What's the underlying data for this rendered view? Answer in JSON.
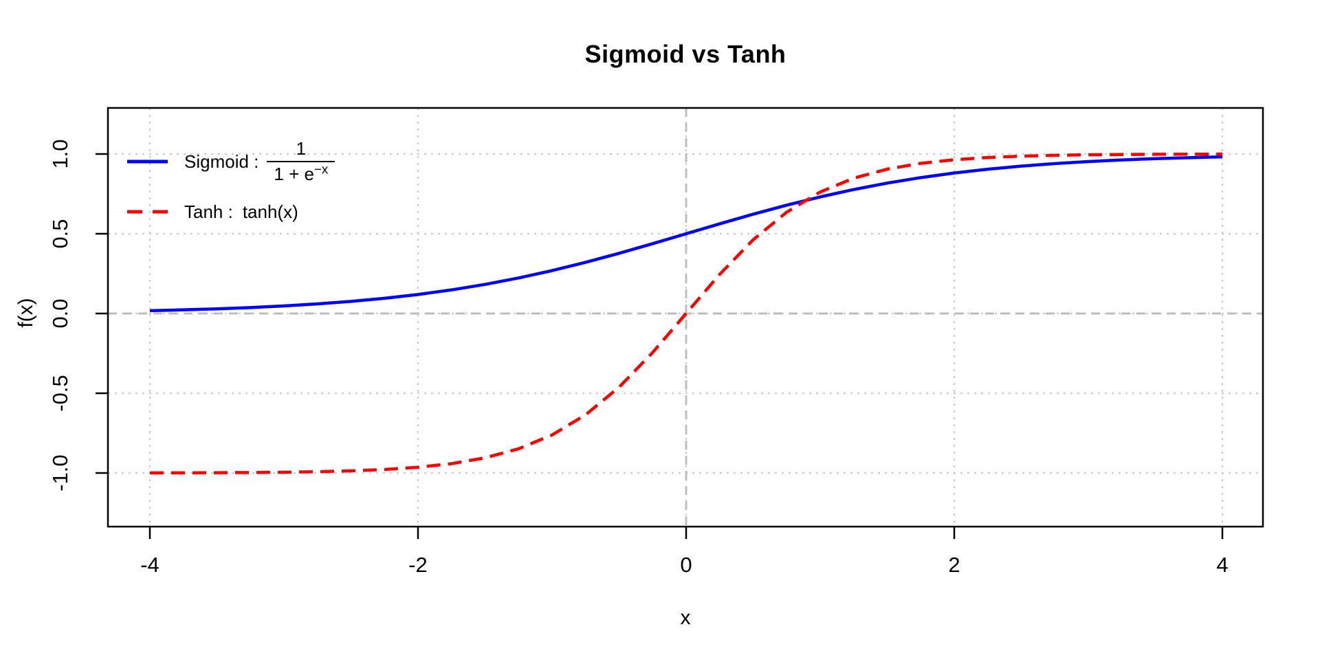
{
  "title": "Sigmoid vs Tanh",
  "axes": {
    "x_label": "x",
    "y_label": "f(x)",
    "x_tick_labels": [
      "-4",
      "-2",
      "0",
      "2",
      "4"
    ],
    "y_tick_labels": [
      "-1.0",
      "-0.5",
      "0.0",
      "0.5",
      "1.0"
    ]
  },
  "legend": {
    "sigmoid_label": "Sigmoid :",
    "sigmoid_frac_numerator": "1",
    "sigmoid_frac_denominator_base": "1 + e",
    "sigmoid_frac_denominator_exp": "−x",
    "tanh_label": "Tanh :",
    "tanh_formula": "tanh(x)"
  },
  "colors": {
    "sigmoid": "#0000FF",
    "tanh": "#FF0000",
    "grid_dotted": "#CDCDCD",
    "reference_dashed": "#BEBEBE",
    "axis": "#000000",
    "text": "#000000",
    "background": "#FFFFFF"
  },
  "chart_data": {
    "type": "line",
    "title": "Sigmoid vs Tanh",
    "xlabel": "x",
    "ylabel": "f(x)",
    "xlim": [
      -4.3,
      4.3
    ],
    "ylim": [
      -1.35,
      1.3
    ],
    "x_tick_values": [
      -4,
      -2,
      0,
      2,
      4
    ],
    "y_tick_values": [
      -1.0,
      -0.5,
      0.0,
      0.5,
      1.0
    ],
    "grid": "dotted gridlines at all ticks; dashed gray reference lines at x=0 and y=0",
    "legend_position": "top-left",
    "x": [
      -4,
      -3.75,
      -3.5,
      -3.25,
      -3,
      -2.75,
      -2.5,
      -2.25,
      -2,
      -1.75,
      -1.5,
      -1.25,
      -1,
      -0.75,
      -0.5,
      -0.25,
      0,
      0.25,
      0.5,
      0.75,
      1,
      1.25,
      1.5,
      1.75,
      2,
      2.25,
      2.5,
      2.75,
      3,
      3.25,
      3.5,
      3.75,
      4
    ],
    "series": [
      {
        "name": "Sigmoid : 1/(1+e^(-x))",
        "color": "#0000FF",
        "style": "solid",
        "values": [
          0.018,
          0.023,
          0.0293,
          0.0374,
          0.0474,
          0.0601,
          0.0759,
          0.0953,
          0.1192,
          0.148,
          0.1824,
          0.2227,
          0.2689,
          0.3208,
          0.3775,
          0.4378,
          0.5,
          0.5622,
          0.6225,
          0.6792,
          0.7311,
          0.7773,
          0.8176,
          0.852,
          0.8808,
          0.9047,
          0.9241,
          0.9399,
          0.9526,
          0.9626,
          0.9707,
          0.977,
          0.982
        ]
      },
      {
        "name": "Tanh : tanh(x)",
        "color": "#FF0000",
        "style": "dashed",
        "values": [
          -0.9993,
          -0.9989,
          -0.9982,
          -0.997,
          -0.9951,
          -0.9919,
          -0.9866,
          -0.978,
          -0.964,
          -0.9414,
          -0.9051,
          -0.8483,
          -0.7616,
          -0.6351,
          -0.4621,
          -0.2449,
          0,
          0.2449,
          0.4621,
          0.6351,
          0.7616,
          0.8483,
          0.9051,
          0.9414,
          0.964,
          0.978,
          0.9866,
          0.9919,
          0.9951,
          0.997,
          0.9982,
          0.9989,
          0.9993
        ]
      }
    ]
  }
}
